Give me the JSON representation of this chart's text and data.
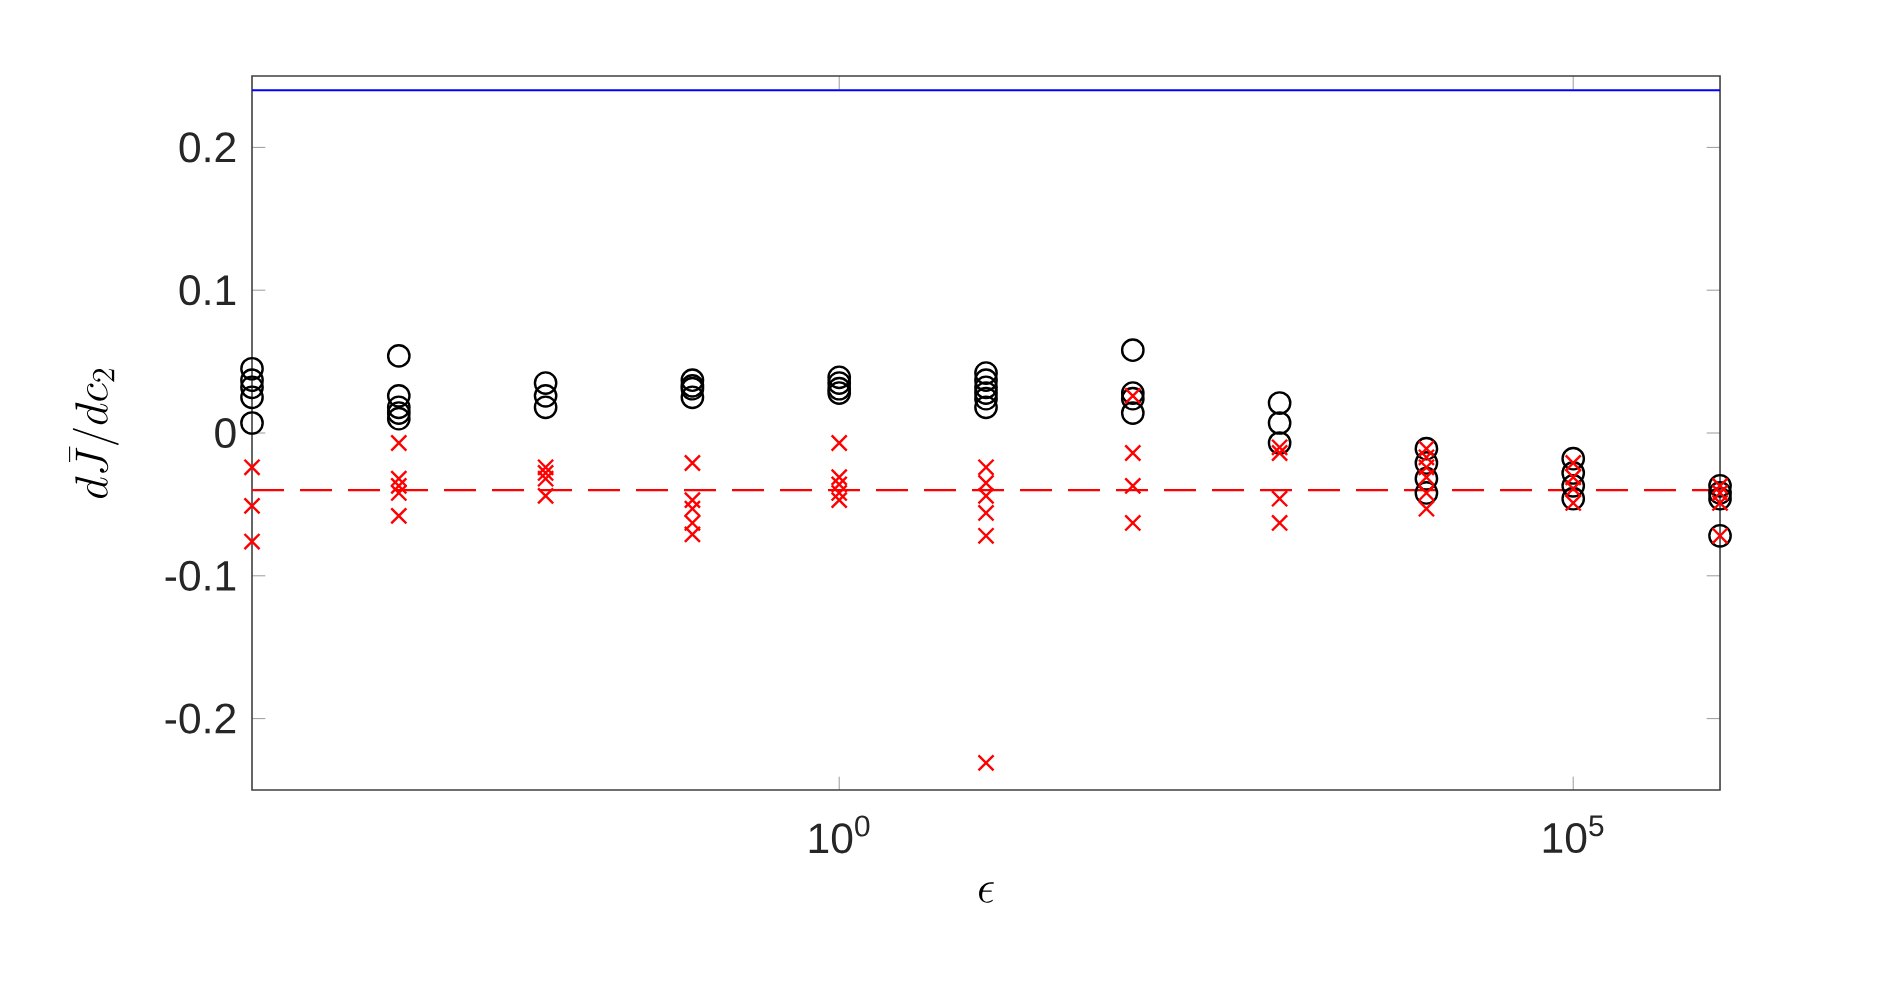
{
  "chart_data": {
    "type": "scatter",
    "xlabel": "\\epsilon",
    "ylabel": "d\\bar{J}/dc_2",
    "log": "x",
    "xlim": [
      0.0001,
      1000000
    ],
    "ylim": [
      -0.25,
      0.25
    ],
    "xticks": [
      {
        "value": 1,
        "label": "10$^{0}$"
      },
      {
        "value": 100000,
        "label": "10$^{5}$"
      }
    ],
    "yticks": [
      -0.2,
      -0.1,
      0,
      0.1,
      0.2
    ],
    "series": [
      {
        "color": "#000000",
        "marker": "circle",
        "x": [
          0.0001,
          0.0001,
          0.0001,
          0.0001,
          0.0001,
          0.001,
          0.001,
          0.001,
          0.001,
          0.001,
          0.01,
          0.01,
          0.01,
          0.1,
          0.1,
          0.1,
          0.1,
          1,
          1,
          1,
          1,
          10,
          10,
          10,
          10,
          10,
          10,
          100,
          100,
          100,
          100,
          1000,
          1000,
          1000,
          10000,
          10000,
          10000,
          10000,
          100000,
          100000,
          100000,
          100000,
          1000000,
          1000000,
          1000000,
          1000000
        ],
        "values": [
          0.045,
          0.037,
          0.032,
          0.025,
          0.007,
          0.054,
          0.026,
          0.018,
          0.014,
          0.01,
          0.035,
          0.026,
          0.018,
          0.037,
          0.033,
          0.031,
          0.025,
          0.039,
          0.035,
          0.031,
          0.028,
          0.042,
          0.037,
          0.032,
          0.028,
          0.024,
          0.018,
          0.058,
          0.028,
          0.024,
          0.014,
          0.021,
          0.007,
          -0.007,
          -0.011,
          -0.021,
          -0.032,
          -0.042,
          -0.018,
          -0.028,
          -0.037,
          -0.046,
          -0.037,
          -0.042,
          -0.046,
          -0.072
        ]
      },
      {
        "color": "#ff0000",
        "marker": "cross",
        "x": [
          0.0001,
          0.0001,
          0.0001,
          0.001,
          0.001,
          0.001,
          0.001,
          0.001,
          0.01,
          0.01,
          0.01,
          0.01,
          0.1,
          0.1,
          0.1,
          0.1,
          0.1,
          1,
          1,
          1,
          1,
          1,
          10,
          10,
          10,
          10,
          10,
          10,
          100,
          100,
          100,
          100,
          1000,
          1000,
          1000,
          1000,
          10000,
          10000,
          10000,
          10000,
          10000,
          10000,
          100000,
          100000,
          100000,
          100000,
          1000000,
          1000000,
          1000000,
          1000000
        ],
        "values": [
          -0.024,
          -0.051,
          -0.076,
          -0.007,
          -0.032,
          -0.037,
          -0.042,
          -0.058,
          -0.024,
          -0.028,
          -0.032,
          -0.044,
          -0.021,
          -0.047,
          -0.053,
          -0.063,
          -0.071,
          -0.007,
          -0.031,
          -0.036,
          -0.042,
          -0.047,
          -0.024,
          -0.035,
          -0.044,
          -0.056,
          -0.072,
          -0.231,
          0.026,
          -0.014,
          -0.037,
          -0.063,
          -0.01,
          -0.014,
          -0.046,
          -0.063,
          -0.011,
          -0.017,
          -0.024,
          -0.031,
          -0.042,
          -0.053,
          -0.021,
          -0.031,
          -0.039,
          -0.049,
          -0.037,
          -0.042,
          -0.049,
          -0.072
        ]
      }
    ],
    "ref_lines": [
      {
        "axis": "y",
        "value": 0.24,
        "color": "#0000ff",
        "line_style": "solid"
      },
      {
        "axis": "y",
        "value": -0.04,
        "color": "#ff0000",
        "line_style": "dashed"
      }
    ]
  }
}
